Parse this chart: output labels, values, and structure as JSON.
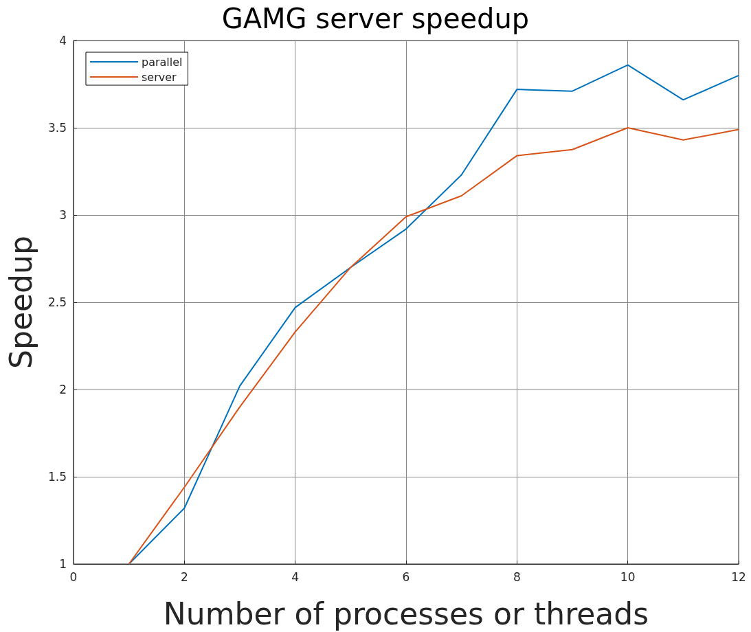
{
  "chart_data": {
    "type": "line",
    "title": "GAMG server speedup",
    "xlabel": "Number of processes or threads",
    "ylabel": "Speedup",
    "x": [
      1,
      2,
      3,
      4,
      5,
      6,
      7,
      8,
      9,
      10,
      11,
      12
    ],
    "series": [
      {
        "name": "parallel",
        "color": "#0072bd",
        "values": [
          1.0,
          1.32,
          2.02,
          2.47,
          2.7,
          2.92,
          3.23,
          3.72,
          3.71,
          3.86,
          3.66,
          3.8
        ]
      },
      {
        "name": "server",
        "color": "#d95319",
        "values": [
          1.0,
          1.44,
          1.9,
          2.33,
          2.7,
          2.99,
          3.11,
          3.34,
          3.375,
          3.5,
          3.43,
          3.49
        ]
      }
    ],
    "xlim": [
      0,
      12
    ],
    "xticks": [
      0,
      2,
      4,
      6,
      8,
      10,
      12
    ],
    "ylim": [
      1,
      4
    ],
    "yticks": [
      1,
      1.5,
      2,
      2.5,
      3,
      3.5,
      4
    ],
    "grid": true,
    "legend": "top left",
    "marker": "none",
    "line_style": "solid"
  }
}
